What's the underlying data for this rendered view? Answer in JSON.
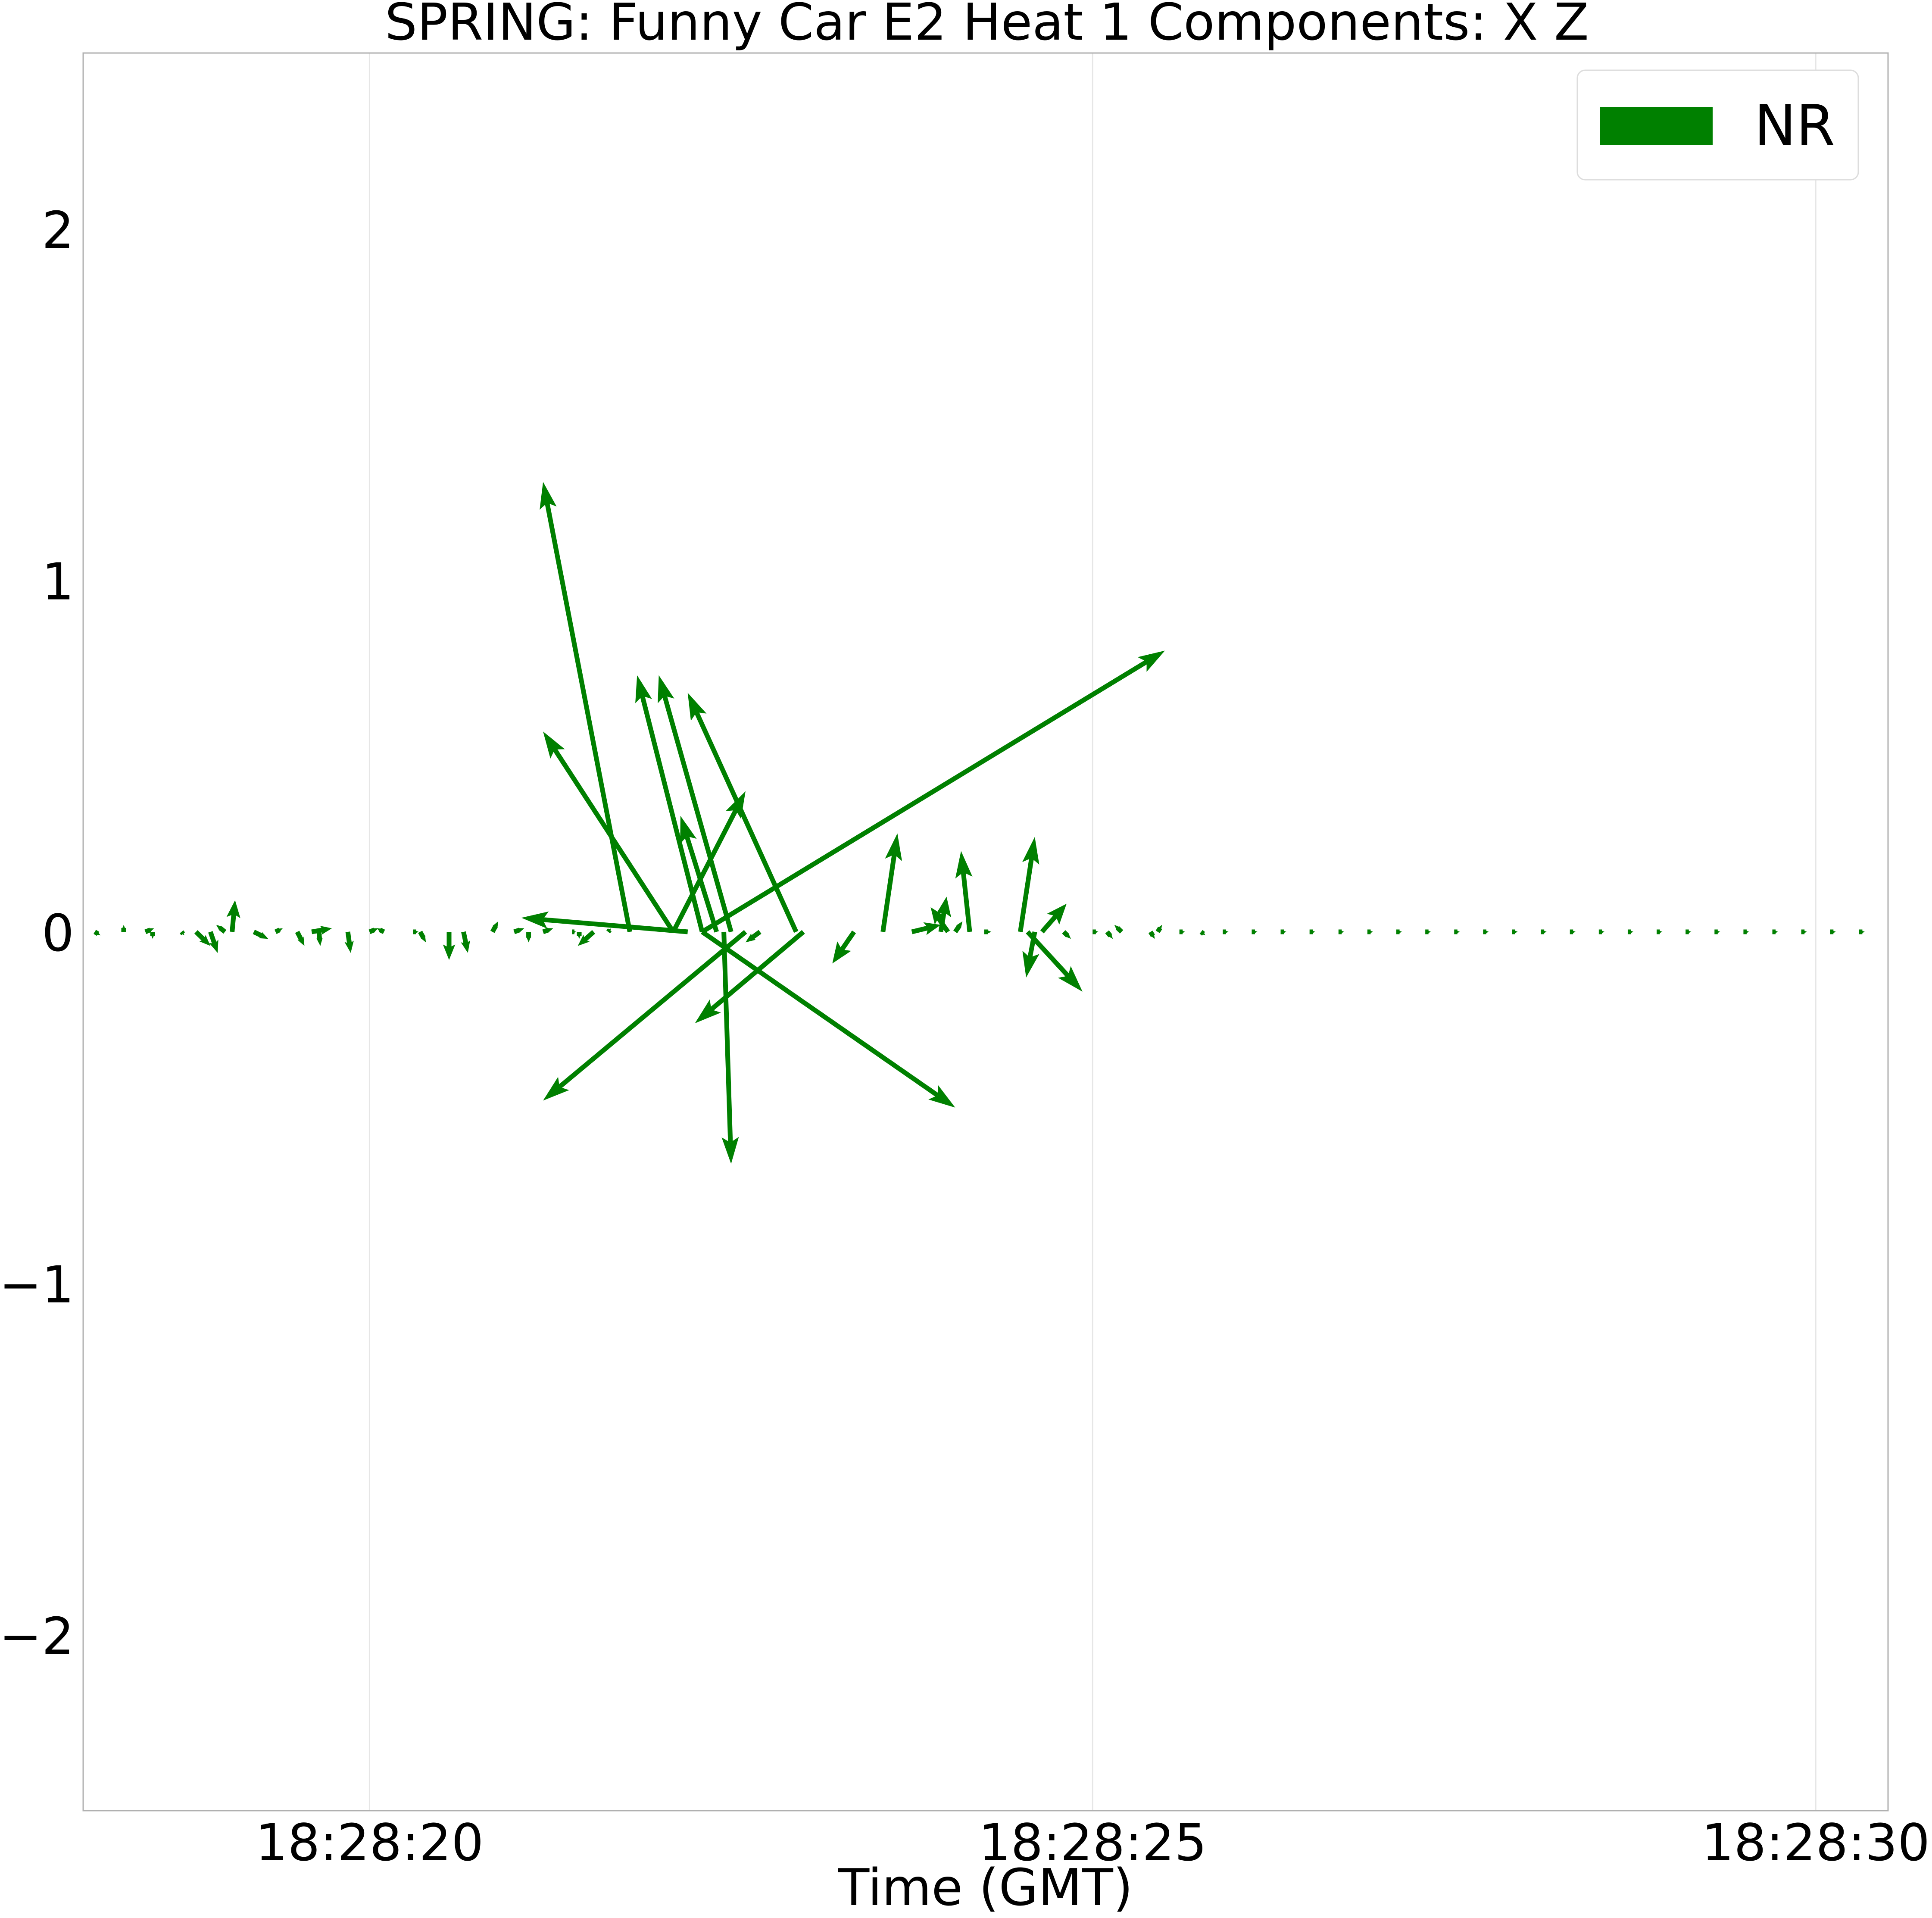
{
  "chart_data": {
    "type": "quiver",
    "title": "SPRING: Funny Car E2 Heat 1 Components: X Z",
    "xlabel": "Time (GMT)",
    "ylabel": "",
    "x_ticks": [
      "18:28:20",
      "18:28:25",
      "18:28:30"
    ],
    "x_tick_values": [
      20,
      25,
      30
    ],
    "x_axis_unit": "seconds past 18:28:00",
    "xlim": [
      18.02,
      30.5
    ],
    "y_ticks": [
      "−2",
      "−1",
      "0",
      "1",
      "2"
    ],
    "y_tick_values": [
      -2,
      -1,
      0,
      1,
      2
    ],
    "ylim": [
      -2.5,
      2.5
    ],
    "grid": "vertical",
    "legend": {
      "position": "top-right",
      "entries": [
        {
          "label": "NR",
          "color": "#008000"
        }
      ]
    },
    "series": [
      {
        "name": "NR",
        "color": "#008000",
        "vectors": [
          {
            "t": 18.1,
            "dx": 0.04,
            "dz": -0.01
          },
          {
            "t": 18.3,
            "dx": 0.0,
            "dz": 0.02
          },
          {
            "t": 18.45,
            "dx": 0.06,
            "dz": 0.01
          },
          {
            "t": 18.5,
            "dx": 0.0,
            "dz": -0.02
          },
          {
            "t": 18.7,
            "dx": 0.02,
            "dz": -0.01
          },
          {
            "t": 18.8,
            "dx": 0.1,
            "dz": -0.04
          },
          {
            "t": 18.9,
            "dx": 0.05,
            "dz": -0.06
          },
          {
            "t": 19.0,
            "dx": -0.06,
            "dz": 0.02
          },
          {
            "t": 19.05,
            "dx": 0.02,
            "dz": 0.09
          },
          {
            "t": 19.2,
            "dx": 0.1,
            "dz": -0.02
          },
          {
            "t": 19.35,
            "dx": 0.05,
            "dz": 0.01
          },
          {
            "t": 19.5,
            "dx": 0.05,
            "dz": -0.04
          },
          {
            "t": 19.6,
            "dx": 0.14,
            "dz": 0.01
          },
          {
            "t": 19.65,
            "dx": 0.01,
            "dz": -0.04
          },
          {
            "t": 19.85,
            "dx": 0.02,
            "dz": -0.06
          },
          {
            "t": 20.0,
            "dx": 0.06,
            "dz": 0.01
          },
          {
            "t": 20.1,
            "dx": -0.05,
            "dz": 0.01
          },
          {
            "t": 20.3,
            "dx": 0.04,
            "dz": 0.0
          },
          {
            "t": 20.35,
            "dx": 0.04,
            "dz": -0.03
          },
          {
            "t": 20.55,
            "dx": 0.0,
            "dz": -0.08
          },
          {
            "t": 20.65,
            "dx": 0.03,
            "dz": -0.06
          },
          {
            "t": 20.85,
            "dx": 0.04,
            "dz": 0.03
          },
          {
            "t": 21.0,
            "dx": 0.07,
            "dz": 0.01
          },
          {
            "t": 21.1,
            "dx": 0.0,
            "dz": -0.03
          },
          {
            "t": 21.2,
            "dx": 0.07,
            "dz": 0.01
          },
          {
            "t": 21.4,
            "dx": 0.03,
            "dz": 0.0
          },
          {
            "t": 21.45,
            "dx": 0.0,
            "dz": -0.02
          },
          {
            "t": 21.55,
            "dx": -0.11,
            "dz": -0.04
          },
          {
            "t": 21.65,
            "dx": 0.02,
            "dz": 0.01
          },
          {
            "t": 21.8,
            "dx": -0.6,
            "dz": 1.28
          },
          {
            "t": 22.1,
            "dx": -0.9,
            "dz": 0.57
          },
          {
            "t": 22.1,
            "dx": 0.5,
            "dz": 0.4
          },
          {
            "t": 22.2,
            "dx": -1.15,
            "dz": 0.04
          },
          {
            "t": 22.3,
            "dx": -0.45,
            "dz": 0.73
          },
          {
            "t": 22.3,
            "dx": 3.2,
            "dz": 0.8
          },
          {
            "t": 22.3,
            "dx": 1.75,
            "dz": -0.5
          },
          {
            "t": 22.4,
            "dx": -0.25,
            "dz": 0.33
          },
          {
            "t": 22.45,
            "dx": 0.05,
            "dz": -0.66
          },
          {
            "t": 22.5,
            "dx": -0.5,
            "dz": 0.73
          },
          {
            "t": 22.6,
            "dx": -1.4,
            "dz": -0.48
          },
          {
            "t": 22.7,
            "dx": -0.1,
            "dz": -0.03
          },
          {
            "t": 22.95,
            "dx": -0.75,
            "dz": 0.68
          },
          {
            "t": 23.0,
            "dx": -0.75,
            "dz": -0.26
          },
          {
            "t": 23.35,
            "dx": -0.15,
            "dz": -0.09
          },
          {
            "t": 23.55,
            "dx": 0.1,
            "dz": 0.28
          },
          {
            "t": 23.75,
            "dx": 0.2,
            "dz": 0.02
          },
          {
            "t": 23.95,
            "dx": 0.04,
            "dz": 0.1
          },
          {
            "t": 24.0,
            "dx": -0.12,
            "dz": 0.07
          },
          {
            "t": 24.05,
            "dx": 0.05,
            "dz": 0.03
          },
          {
            "t": 24.15,
            "dx": -0.06,
            "dz": 0.23
          },
          {
            "t": 24.25,
            "dx": 0.05,
            "dz": 0.0
          },
          {
            "t": 24.5,
            "dx": 0.1,
            "dz": 0.27
          },
          {
            "t": 24.55,
            "dx": 0.38,
            "dz": -0.17
          },
          {
            "t": 24.6,
            "dx": -0.06,
            "dz": -0.13
          },
          {
            "t": 24.65,
            "dx": 0.17,
            "dz": 0.08
          },
          {
            "t": 24.8,
            "dx": 0.05,
            "dz": -0.02
          },
          {
            "t": 25.0,
            "dx": 0.04,
            "dz": 0.0
          },
          {
            "t": 25.1,
            "dx": 0.04,
            "dz": -0.02
          },
          {
            "t": 25.2,
            "dx": -0.05,
            "dz": 0.02
          },
          {
            "t": 25.4,
            "dx": 0.03,
            "dz": -0.02
          },
          {
            "t": 25.45,
            "dx": 0.03,
            "dz": 0.02
          },
          {
            "t": 25.6,
            "dx": 0.04,
            "dz": 0.0
          },
          {
            "t": 25.75,
            "dx": 0.03,
            "dz": -0.01
          },
          {
            "t": 25.9,
            "dx": 0.04,
            "dz": 0.0
          },
          {
            "t": 26.1,
            "dx": 0.04,
            "dz": 0.0
          },
          {
            "t": 26.3,
            "dx": 0.04,
            "dz": 0.0
          },
          {
            "t": 26.5,
            "dx": 0.04,
            "dz": 0.0
          },
          {
            "t": 26.7,
            "dx": 0.04,
            "dz": 0.0
          },
          {
            "t": 26.9,
            "dx": 0.04,
            "dz": 0.0
          },
          {
            "t": 27.1,
            "dx": 0.04,
            "dz": 0.0
          },
          {
            "t": 27.3,
            "dx": 0.04,
            "dz": 0.0
          },
          {
            "t": 27.5,
            "dx": 0.04,
            "dz": 0.0
          },
          {
            "t": 27.7,
            "dx": 0.04,
            "dz": 0.0
          },
          {
            "t": 27.9,
            "dx": 0.04,
            "dz": 0.0
          },
          {
            "t": 28.1,
            "dx": 0.04,
            "dz": 0.0
          },
          {
            "t": 28.3,
            "dx": 0.04,
            "dz": 0.0
          },
          {
            "t": 28.5,
            "dx": 0.04,
            "dz": 0.0
          },
          {
            "t": 28.7,
            "dx": 0.04,
            "dz": 0.0
          },
          {
            "t": 28.9,
            "dx": 0.04,
            "dz": 0.0
          },
          {
            "t": 29.1,
            "dx": 0.04,
            "dz": 0.0
          },
          {
            "t": 29.3,
            "dx": 0.04,
            "dz": 0.0
          },
          {
            "t": 29.5,
            "dx": 0.04,
            "dz": 0.0
          },
          {
            "t": 29.7,
            "dx": 0.04,
            "dz": 0.0
          },
          {
            "t": 29.9,
            "dx": 0.04,
            "dz": 0.0
          },
          {
            "t": 30.1,
            "dx": 0.04,
            "dz": 0.0
          },
          {
            "t": 30.3,
            "dx": 0.04,
            "dz": 0.0
          }
        ]
      }
    ]
  }
}
